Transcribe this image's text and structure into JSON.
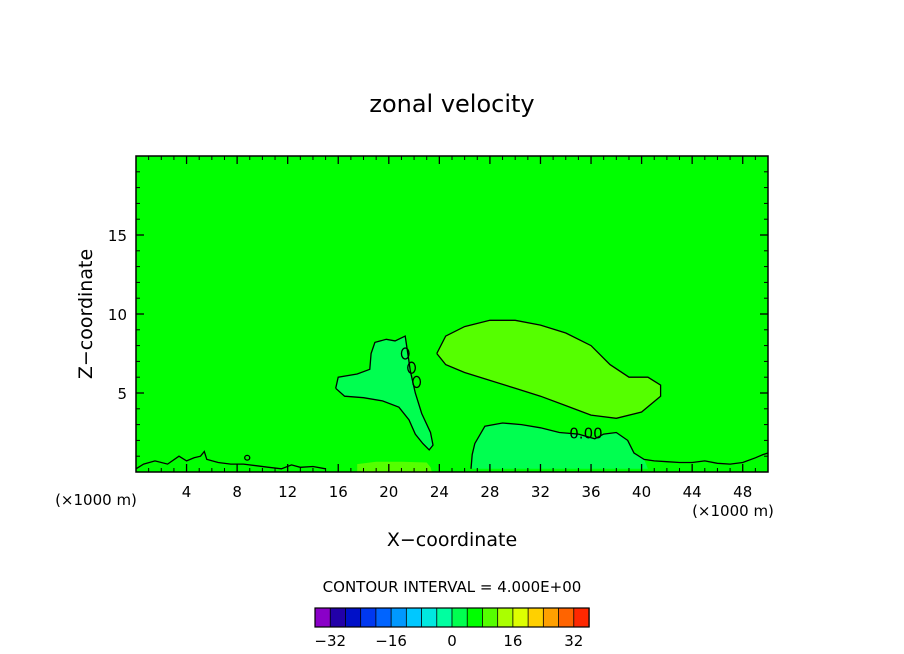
{
  "chart_data": {
    "type": "heatmap",
    "title": "zonal velocity",
    "xlabel": "X−coordinate",
    "ylabel": "Z−coordinate",
    "x_unit_left": "(×1000 m)",
    "x_unit_right": "(×1000 m)",
    "xlim": [
      0,
      50
    ],
    "ylim": [
      0,
      20
    ],
    "x_ticks": [
      4,
      8,
      12,
      16,
      20,
      24,
      28,
      32,
      36,
      40,
      44,
      48
    ],
    "y_ticks": [
      5,
      10,
      15
    ],
    "contour_label": "0.00",
    "contour_interval_text": "CONTOUR INTERVAL = 4.000E+00",
    "colorbar": {
      "vmin": -36,
      "vmax": 36,
      "step": 4,
      "tick_values": [
        -32,
        -16,
        0,
        16,
        32
      ],
      "tick_labels": [
        "−32",
        "−16",
        "0",
        "16",
        "32"
      ],
      "colors": [
        "#8a00c8",
        "#2200a8",
        "#0010c8",
        "#0038f0",
        "#0064ff",
        "#0098ff",
        "#00c8ff",
        "#00e8e0",
        "#00ffa0",
        "#00ff50",
        "#00ff00",
        "#55ff00",
        "#aaff00",
        "#ddff00",
        "#ffd000",
        "#ffa000",
        "#ff6400",
        "#ff2800"
      ]
    },
    "background_color": "#00ff00",
    "regions": [
      {
        "color": "#55ff00",
        "points": [
          [
            23.8,
            7.5
          ],
          [
            24.5,
            8.6
          ],
          [
            26,
            9.2
          ],
          [
            28,
            9.6
          ],
          [
            30,
            9.6
          ],
          [
            32,
            9.3
          ],
          [
            34,
            8.8
          ],
          [
            36,
            8
          ],
          [
            37.5,
            6.8
          ],
          [
            39,
            6
          ],
          [
            40.5,
            6
          ],
          [
            41.5,
            5.5
          ],
          [
            41.5,
            4.8
          ],
          [
            40,
            3.8
          ],
          [
            38,
            3.4
          ],
          [
            36,
            3.6
          ],
          [
            34,
            4.2
          ],
          [
            32,
            4.8
          ],
          [
            30,
            5.3
          ],
          [
            28,
            5.8
          ],
          [
            26,
            6.3
          ],
          [
            24.5,
            6.8
          ]
        ]
      },
      {
        "color": "#00ff50",
        "points": [
          [
            15.8,
            5.3
          ],
          [
            16,
            6
          ],
          [
            17.5,
            6.2
          ],
          [
            18.5,
            6.5
          ],
          [
            18.6,
            7.5
          ],
          [
            18.9,
            8.2
          ],
          [
            19.8,
            8.4
          ],
          [
            20.5,
            8.3
          ],
          [
            21.3,
            8.6
          ],
          [
            21.5,
            7.5
          ],
          [
            21.7,
            6.4
          ],
          [
            22.1,
            5
          ],
          [
            22.6,
            3.7
          ],
          [
            23.3,
            2.5
          ],
          [
            23.5,
            1.7
          ],
          [
            23.2,
            1.4
          ],
          [
            22.7,
            1.8
          ],
          [
            22.1,
            2.4
          ],
          [
            21.6,
            3.3
          ],
          [
            20.8,
            4.1
          ],
          [
            19.5,
            4.5
          ],
          [
            18,
            4.7
          ],
          [
            16.5,
            4.8
          ]
        ]
      },
      {
        "color": "#00ff50",
        "points": [
          [
            26.5,
            0.2
          ],
          [
            26.6,
            1.1
          ],
          [
            26.8,
            1.8
          ],
          [
            27.6,
            2.9
          ],
          [
            29,
            3.1
          ],
          [
            30.5,
            3
          ],
          [
            32,
            2.8
          ],
          [
            33.5,
            2.5
          ],
          [
            35,
            2.4
          ],
          [
            36.3,
            2.1
          ],
          [
            37,
            2.4
          ],
          [
            38,
            2.5
          ],
          [
            38.9,
            2
          ],
          [
            39.4,
            1.2
          ],
          [
            40.2,
            0.8
          ],
          [
            40.5,
            0.2
          ]
        ]
      },
      {
        "color": "#55ff00",
        "points": [
          [
            17.5,
            0.02
          ],
          [
            17.5,
            0.5
          ],
          [
            19,
            0.65
          ],
          [
            21,
            0.65
          ],
          [
            23,
            0.6
          ],
          [
            23.3,
            0.3
          ],
          [
            23.4,
            0.02
          ]
        ]
      }
    ],
    "contours": [
      [
        [
          23.8,
          7.5
        ],
        [
          24.5,
          8.6
        ],
        [
          26,
          9.2
        ],
        [
          28,
          9.6
        ],
        [
          30,
          9.6
        ],
        [
          32,
          9.3
        ],
        [
          34,
          8.8
        ],
        [
          36,
          8
        ],
        [
          37.5,
          6.8
        ],
        [
          39,
          6
        ],
        [
          40.5,
          6
        ],
        [
          41.5,
          5.5
        ],
        [
          41.5,
          4.8
        ],
        [
          40,
          3.8
        ],
        [
          38,
          3.4
        ],
        [
          36,
          3.6
        ],
        [
          34,
          4.2
        ],
        [
          32,
          4.8
        ],
        [
          30,
          5.3
        ],
        [
          28,
          5.8
        ],
        [
          26,
          6.3
        ],
        [
          24.5,
          6.8
        ],
        [
          23.8,
          7.5
        ]
      ],
      [
        [
          15.8,
          5.3
        ],
        [
          16,
          6
        ],
        [
          17.5,
          6.2
        ],
        [
          18.5,
          6.5
        ],
        [
          18.6,
          7.5
        ],
        [
          18.9,
          8.2
        ],
        [
          19.8,
          8.4
        ],
        [
          20.5,
          8.3
        ],
        [
          21.3,
          8.6
        ],
        [
          21.5,
          7.5
        ],
        [
          21.7,
          6.4
        ],
        [
          22.1,
          5
        ],
        [
          22.6,
          3.7
        ],
        [
          23.3,
          2.5
        ],
        [
          23.5,
          1.7
        ],
        [
          23.2,
          1.4
        ],
        [
          22.7,
          1.8
        ],
        [
          22.1,
          2.4
        ],
        [
          21.6,
          3.3
        ],
        [
          20.8,
          4.1
        ],
        [
          19.5,
          4.5
        ],
        [
          18,
          4.7
        ],
        [
          16.5,
          4.8
        ],
        [
          15.8,
          5.3
        ]
      ],
      [
        [
          26.5,
          0.2
        ],
        [
          26.6,
          1.1
        ],
        [
          26.8,
          1.8
        ],
        [
          27.6,
          2.9
        ],
        [
          29,
          3.1
        ],
        [
          30.5,
          3
        ],
        [
          32,
          2.8
        ],
        [
          33.5,
          2.5
        ],
        [
          35,
          2.4
        ],
        [
          36.3,
          2.1
        ],
        [
          37,
          2.4
        ],
        [
          38,
          2.5
        ],
        [
          38.9,
          2
        ],
        [
          39.4,
          1.2
        ],
        [
          40.2,
          0.8
        ],
        [
          41,
          0.7
        ],
        [
          42,
          0.65
        ],
        [
          43,
          0.6
        ],
        [
          44,
          0.6
        ],
        [
          45,
          0.7
        ],
        [
          46,
          0.55
        ],
        [
          47,
          0.5
        ],
        [
          48,
          0.6
        ],
        [
          49,
          0.9
        ],
        [
          49.6,
          1.1
        ],
        [
          50,
          1.2
        ]
      ],
      [
        [
          0,
          0.2
        ],
        [
          0.6,
          0.5
        ],
        [
          1.5,
          0.7
        ],
        [
          2.5,
          0.5
        ],
        [
          3.4,
          1
        ],
        [
          4,
          0.7
        ],
        [
          4.6,
          0.9
        ],
        [
          5.1,
          1.0
        ],
        [
          5.4,
          1.3
        ],
        [
          5.6,
          0.8
        ],
        [
          6.5,
          0.6
        ],
        [
          7.5,
          0.5
        ],
        [
          8.5,
          0.5
        ],
        [
          9.5,
          0.4
        ],
        [
          10.5,
          0.3
        ],
        [
          11.5,
          0.2
        ],
        [
          12.3,
          0.45
        ],
        [
          13,
          0.3
        ],
        [
          14,
          0.35
        ],
        [
          15,
          0.2
        ]
      ]
    ],
    "small_contours": [
      {
        "cx": 21.3,
        "cy": 7.5,
        "rx": 0.3,
        "ry": 0.35
      },
      {
        "cx": 21.8,
        "cy": 6.6,
        "rx": 0.3,
        "ry": 0.35
      },
      {
        "cx": 22.2,
        "cy": 5.7,
        "rx": 0.3,
        "ry": 0.35
      },
      {
        "cx": 8.8,
        "cy": 0.9,
        "rx": 0.2,
        "ry": 0.15
      }
    ],
    "contour_label_pos": [
      35.6,
      2.4
    ]
  }
}
